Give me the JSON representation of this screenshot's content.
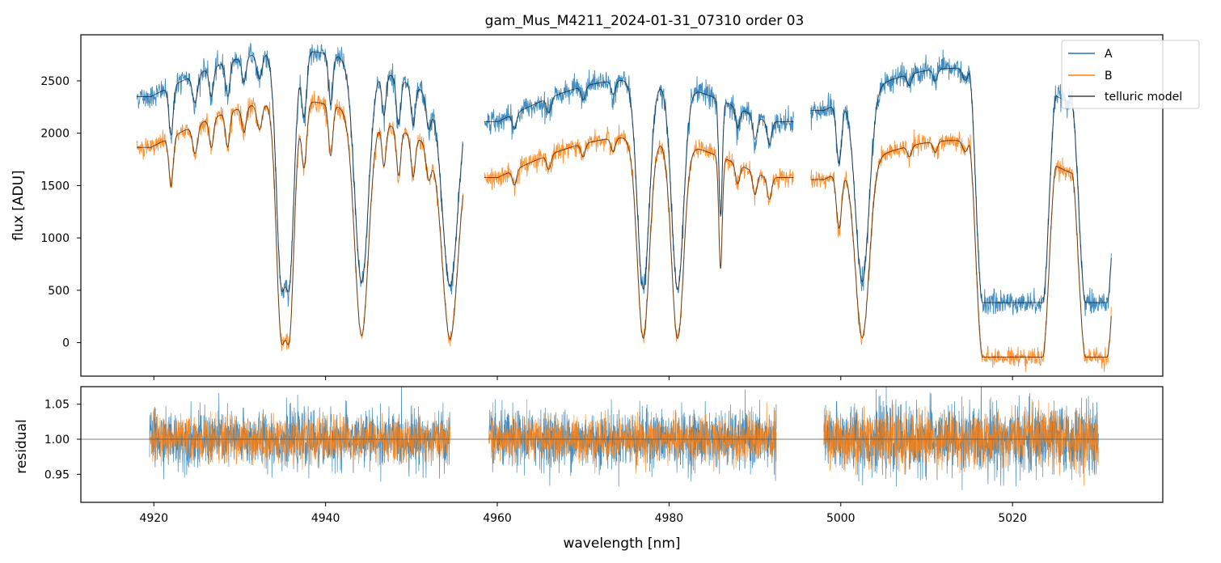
{
  "figure": {
    "title": "gam_Mus_M4211_2024-01-31_07310  order 03"
  },
  "colors": {
    "A": "#1f77b4",
    "B": "#ff7f0e",
    "model": "#000000",
    "axis": "#000000"
  },
  "chart_data": [
    {
      "type": "line",
      "panel": "top",
      "title": "gam_Mus_M4211_2024-01-31_07310  order 03",
      "xlabel": "",
      "ylabel": "flux [ADU]",
      "xlim": [
        4911.5,
        5037.5
      ],
      "ylim": [
        -320,
        2940
      ],
      "yticks": [
        0,
        500,
        1000,
        1500,
        2000,
        2500
      ],
      "ytick_labels": [
        "0",
        "500",
        "1000",
        "1500",
        "2000",
        "2500"
      ],
      "xticks": [
        4920,
        4940,
        4960,
        4980,
        5000,
        5020
      ],
      "legend": {
        "position": "top-right",
        "entries": [
          "A",
          "B",
          "telluric model"
        ]
      },
      "segments": [
        {
          "range": [
            4918,
            4956
          ],
          "A_level": 2790,
          "B_level": 2310,
          "A_floor": 340,
          "B_floor": -170
        },
        {
          "range": [
            4958.5,
            4994.5
          ],
          "A_level": 2510,
          "B_level": 1960,
          "A_floor": 290,
          "B_floor": -170
        },
        {
          "range": [
            4996.5,
            5031.5
          ],
          "A_level": 2620,
          "B_level": 1930,
          "A_floor": 380,
          "B_floor": -140
        }
      ],
      "absorption_lines": [
        {
          "center": 4922.0,
          "width": 0.25,
          "depth": 0.22
        },
        {
          "center": 4924.8,
          "width": 0.3,
          "depth": 0.12
        },
        {
          "center": 4926.7,
          "width": 0.25,
          "depth": 0.12
        },
        {
          "center": 4928.6,
          "width": 0.25,
          "depth": 0.14
        },
        {
          "center": 4930.5,
          "width": 0.25,
          "depth": 0.1
        },
        {
          "center": 4932.3,
          "width": 0.3,
          "depth": 0.1
        },
        {
          "center": 4934.9,
          "width": 0.6,
          "depth": 0.9
        },
        {
          "center": 4935.7,
          "width": 0.6,
          "depth": 0.9
        },
        {
          "center": 4937.5,
          "width": 0.3,
          "depth": 0.25
        },
        {
          "center": 4940.6,
          "width": 0.25,
          "depth": 0.2
        },
        {
          "center": 4944.2,
          "width": 0.8,
          "depth": 0.9
        },
        {
          "center": 4946.8,
          "width": 0.25,
          "depth": 0.18
        },
        {
          "center": 4948.5,
          "width": 0.25,
          "depth": 0.2
        },
        {
          "center": 4950.2,
          "width": 0.25,
          "depth": 0.18
        },
        {
          "center": 4952.0,
          "width": 0.3,
          "depth": 0.15
        },
        {
          "center": 4954.5,
          "width": 0.9,
          "depth": 0.9
        },
        {
          "center": 4962.0,
          "width": 0.25,
          "depth": 0.08
        },
        {
          "center": 4966.0,
          "width": 0.25,
          "depth": 0.07
        },
        {
          "center": 4970.0,
          "width": 0.25,
          "depth": 0.06
        },
        {
          "center": 4973.5,
          "width": 0.25,
          "depth": 0.06
        },
        {
          "center": 4977.0,
          "width": 0.7,
          "depth": 0.9
        },
        {
          "center": 4981.0,
          "width": 0.7,
          "depth": 0.9
        },
        {
          "center": 4986.0,
          "width": 0.2,
          "depth": 0.55
        },
        {
          "center": 4988.0,
          "width": 0.25,
          "depth": 0.1
        },
        {
          "center": 4990.0,
          "width": 0.25,
          "depth": 0.12
        },
        {
          "center": 4991.7,
          "width": 0.25,
          "depth": 0.12
        },
        {
          "center": 4999.8,
          "width": 0.3,
          "depth": 0.3
        },
        {
          "center": 5002.5,
          "width": 0.8,
          "depth": 0.9
        },
        {
          "center": 5008.0,
          "width": 0.25,
          "depth": 0.05
        },
        {
          "center": 5011.0,
          "width": 0.25,
          "depth": 0.05
        },
        {
          "center": 5014.5,
          "width": 0.3,
          "depth": 0.05
        }
      ],
      "wide_bands": [
        {
          "range": [
            5016.5,
            5023.5
          ],
          "floor_A": 380,
          "floor_B": -140
        },
        {
          "range": [
            5028.5,
            5031.0
          ],
          "floor_A": 380,
          "floor_B": -140
        }
      ],
      "series": [
        {
          "name": "A",
          "color": "#1f77b4"
        },
        {
          "name": "B",
          "color": "#ff7f0e"
        },
        {
          "name": "telluric model",
          "color": "#000000"
        }
      ]
    },
    {
      "type": "line",
      "panel": "bottom",
      "xlabel": "wavelength [nm]",
      "ylabel": "residual",
      "xlim": [
        4911.5,
        5037.5
      ],
      "ylim": [
        0.91,
        1.075
      ],
      "yticks": [
        0.95,
        1.0,
        1.05
      ],
      "ytick_labels": [
        "0.95",
        "1.00",
        "1.05"
      ],
      "xticks": [
        4920,
        4940,
        4960,
        4980,
        5000,
        5020
      ],
      "xtick_labels": [
        "4920",
        "4940",
        "4960",
        "4980",
        "5000",
        "5020"
      ],
      "reference_line": 1.0,
      "segments": [
        {
          "range": [
            4919.5,
            4954.5
          ],
          "scatter_A": 0.025,
          "scatter_B": 0.02
        },
        {
          "range": [
            4959.0,
            4992.5
          ],
          "scatter_A": 0.025,
          "scatter_B": 0.02
        },
        {
          "range": [
            4998.0,
            5030.0
          ],
          "scatter_A": 0.03,
          "scatter_B": 0.025
        }
      ],
      "series": [
        {
          "name": "A",
          "color": "#1f77b4"
        },
        {
          "name": "B",
          "color": "#ff7f0e"
        }
      ]
    }
  ]
}
